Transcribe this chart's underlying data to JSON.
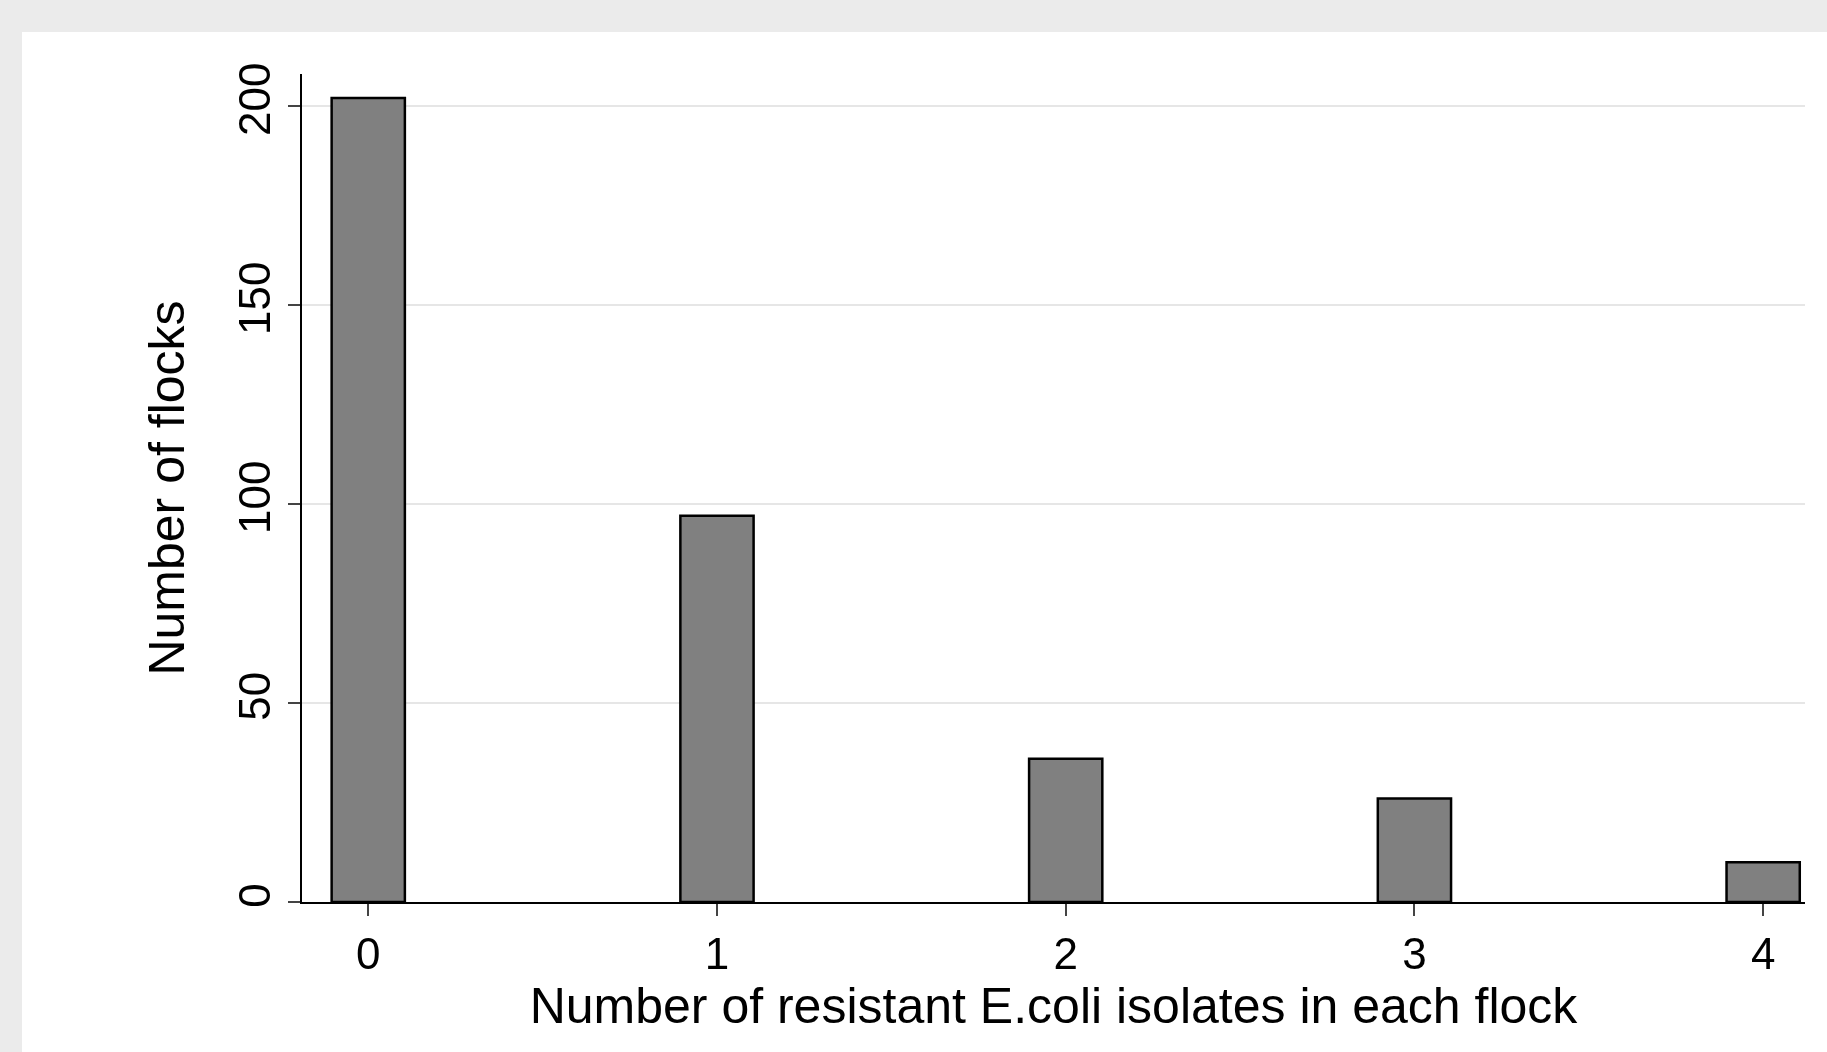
{
  "chart_data": {
    "type": "bar",
    "xlabel": "Number of resistant E.coli isolates in each flock",
    "ylabel": "Number of flocks",
    "x": [
      0,
      1,
      2,
      3,
      4
    ],
    "values": [
      202,
      97,
      36,
      26,
      10
    ],
    "color": "#808080",
    "xlim": [
      -0.19,
      4.12
    ],
    "xticks": [
      0,
      1,
      2,
      3,
      4
    ],
    "ylim": [
      0,
      208
    ],
    "yticks": [
      0,
      50,
      100,
      150,
      200
    ],
    "grid": "y"
  }
}
